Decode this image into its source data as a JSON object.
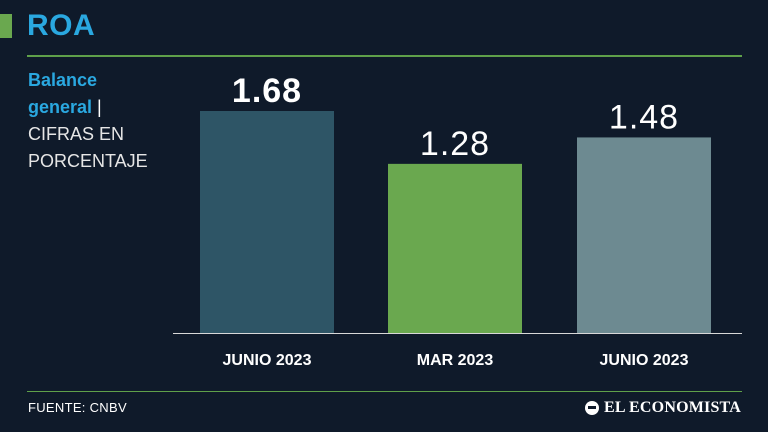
{
  "header": {
    "title": "ROA",
    "subtitle_highlight_1": "Balance",
    "subtitle_highlight_2": "general",
    "subtitle_separator": "|",
    "subtitle_rest_1": "CIFRAS EN",
    "subtitle_rest_2": "PORCENTAJE"
  },
  "footer": {
    "source": "FUENTE: CNBV",
    "brand": "EL ECONOMISTA"
  },
  "colors": {
    "background": "#0f1a2a",
    "title": "#2aa8e0",
    "rule": "#5fa04a"
  },
  "chart_data": {
    "type": "bar",
    "title": "ROA",
    "categories": [
      "JUNIO 2023",
      "MAR 2023",
      "JUNIO 2023"
    ],
    "values": [
      1.68,
      1.28,
      1.48
    ],
    "value_labels": [
      "1.68",
      "1.28",
      "1.48"
    ],
    "bar_colors": [
      "#2e5566",
      "#6aa84f",
      "#6d8a91"
    ],
    "emphasized_index": 0,
    "ylim": [
      0,
      1.68
    ],
    "grid": false,
    "xlabel": "",
    "ylabel": ""
  }
}
